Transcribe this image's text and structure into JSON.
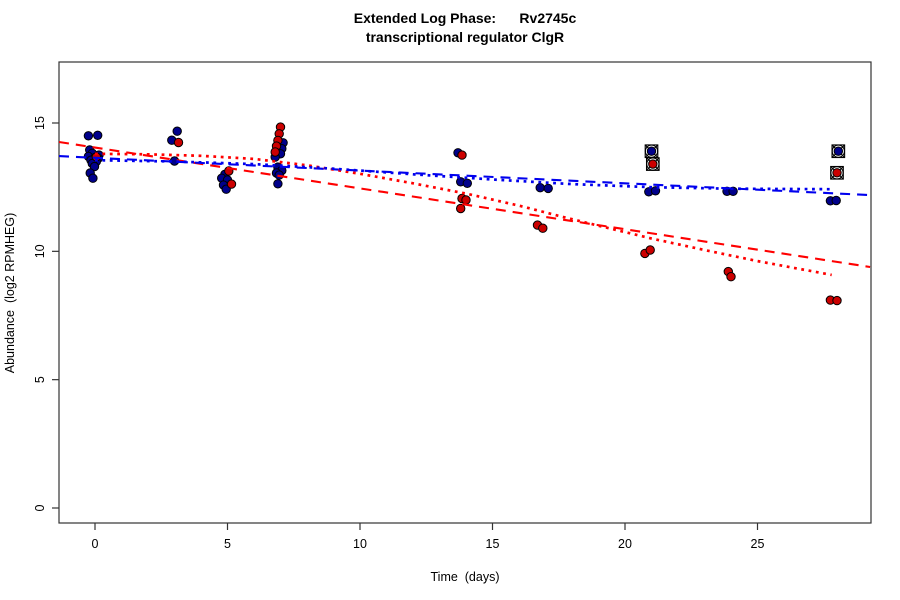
{
  "chart_data": {
    "type": "scatter",
    "title": "Extended Log Phase:      Rv2745c",
    "subtitle": "transcriptional regulator ClgR",
    "xlabel": "Time  (days)",
    "ylabel": "Abundance  (log2 RPMHEG)",
    "x_ticks": [
      0,
      5,
      10,
      15,
      20,
      25
    ],
    "y_ticks": [
      0,
      5,
      10,
      15
    ],
    "xlim": [
      -1.4,
      29.3
    ],
    "ylim": [
      -0.6,
      17.4
    ],
    "grid": false,
    "legend": "none",
    "axis_color": "#333333",
    "series": [
      {
        "name": "blue",
        "color": "#00008B",
        "points": [
          [
            -0.25,
            14.5
          ],
          [
            0.1,
            14.52
          ],
          [
            -0.2,
            13.95
          ],
          [
            -0.1,
            13.82
          ],
          [
            0.15,
            13.75
          ],
          [
            -0.25,
            13.7
          ],
          [
            0.0,
            13.65
          ],
          [
            0.12,
            13.62
          ],
          [
            -0.15,
            13.55
          ],
          [
            0.05,
            13.5
          ],
          [
            -0.1,
            13.42
          ],
          [
            -0.02,
            13.3
          ],
          [
            -0.18,
            13.05
          ],
          [
            -0.08,
            12.85
          ],
          [
            3.1,
            14.68
          ],
          [
            2.9,
            14.33
          ],
          [
            3.0,
            13.52
          ],
          [
            4.9,
            13.0
          ],
          [
            4.78,
            12.85
          ],
          [
            5.0,
            12.78
          ],
          [
            4.85,
            12.58
          ],
          [
            4.95,
            12.42
          ],
          [
            7.1,
            14.23
          ],
          [
            7.05,
            14.0
          ],
          [
            7.0,
            13.8
          ],
          [
            6.8,
            13.67
          ],
          [
            6.9,
            13.28
          ],
          [
            7.05,
            13.15
          ],
          [
            6.85,
            13.05
          ],
          [
            6.95,
            12.97
          ],
          [
            6.9,
            12.63
          ],
          [
            13.7,
            13.84
          ],
          [
            13.8,
            12.71
          ],
          [
            14.05,
            12.65
          ],
          [
            16.8,
            12.48
          ],
          [
            17.1,
            12.45
          ],
          [
            20.9,
            12.32
          ],
          [
            21.15,
            12.36
          ],
          [
            23.85,
            12.34
          ],
          [
            24.08,
            12.34
          ],
          [
            27.75,
            11.97
          ],
          [
            27.97,
            11.98
          ]
        ]
      },
      {
        "name": "red",
        "color": "#CC0000",
        "points": [
          [
            0.05,
            13.68
          ],
          [
            3.15,
            14.24
          ],
          [
            5.05,
            13.13
          ],
          [
            5.15,
            12.62
          ],
          [
            7.0,
            14.84
          ],
          [
            6.95,
            14.58
          ],
          [
            6.9,
            14.32
          ],
          [
            6.85,
            14.1
          ],
          [
            6.8,
            13.87
          ],
          [
            13.85,
            13.75
          ],
          [
            13.85,
            12.06
          ],
          [
            14.0,
            12.0
          ],
          [
            13.8,
            11.67
          ],
          [
            16.7,
            11.02
          ],
          [
            16.9,
            10.9
          ],
          [
            20.75,
            9.92
          ],
          [
            20.95,
            10.05
          ],
          [
            23.9,
            9.21
          ],
          [
            24.0,
            9.01
          ],
          [
            27.75,
            8.1
          ],
          [
            28.0,
            8.08
          ]
        ]
      }
    ],
    "flagged_points": [
      {
        "series": "blue",
        "x": 21.0,
        "y": 13.9
      },
      {
        "series": "red",
        "x": 21.05,
        "y": 13.4
      },
      {
        "series": "blue",
        "x": 28.05,
        "y": 13.9
      },
      {
        "series": "red",
        "x": 28.0,
        "y": 13.06
      }
    ],
    "trend_lines": [
      {
        "name": "red-dashed",
        "color": "#FF0000",
        "style": "dashed",
        "fit": "linear",
        "points": [
          [
            -1.36,
            14.26
          ],
          [
            29.25,
            9.39
          ]
        ]
      },
      {
        "name": "blue-dashed",
        "color": "#0000EE",
        "style": "dashed",
        "fit": "linear",
        "points": [
          [
            -1.36,
            13.71
          ],
          [
            29.25,
            12.19
          ]
        ]
      },
      {
        "name": "red-dotted",
        "color": "#FF0000",
        "style": "dotted",
        "fit": "smooth",
        "points": [
          [
            0,
            13.8
          ],
          [
            2,
            13.78
          ],
          [
            4,
            13.72
          ],
          [
            6,
            13.6
          ],
          [
            8,
            13.35
          ],
          [
            10,
            13.02
          ],
          [
            12,
            12.65
          ],
          [
            14,
            12.25
          ],
          [
            16,
            11.78
          ],
          [
            17.5,
            11.38
          ],
          [
            19,
            11.0
          ],
          [
            21,
            10.5
          ],
          [
            23,
            10.05
          ],
          [
            25,
            9.62
          ],
          [
            27.8,
            9.08
          ]
        ]
      },
      {
        "name": "blue-dotted",
        "color": "#0000EE",
        "style": "dotted",
        "fit": "smooth",
        "points": [
          [
            0,
            13.55
          ],
          [
            3,
            13.5
          ],
          [
            6,
            13.4
          ],
          [
            9,
            13.22
          ],
          [
            12,
            13.0
          ],
          [
            15,
            12.8
          ],
          [
            18,
            12.62
          ],
          [
            21,
            12.5
          ],
          [
            24,
            12.44
          ],
          [
            27.8,
            12.42
          ]
        ]
      }
    ]
  }
}
